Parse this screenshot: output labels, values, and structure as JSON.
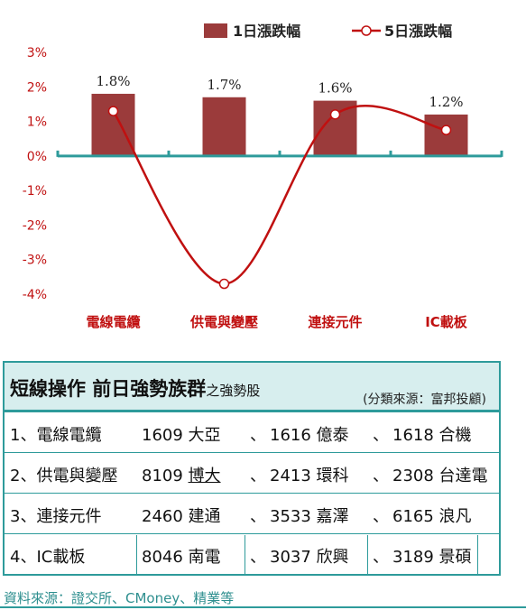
{
  "chart_data": {
    "type": "bar+line",
    "categories": [
      "電線電纜",
      "供電與變壓",
      "連接元件",
      "IC載板"
    ],
    "series": [
      {
        "name": "1日漲跌幅",
        "type": "bar",
        "values": [
          1.8,
          1.7,
          1.6,
          1.2
        ],
        "labels": [
          "1.8%",
          "1.7%",
          "1.6%",
          "1.2%"
        ]
      },
      {
        "name": "5日漲跌幅",
        "type": "line",
        "values": [
          1.3,
          -3.7,
          1.2,
          0.75
        ]
      }
    ],
    "ylim": [
      -4,
      3
    ],
    "yticks": [
      "3%",
      "2%",
      "1%",
      "0%",
      "-1%",
      "-2%",
      "-3%",
      "-4%"
    ],
    "grid": false,
    "legend": "top",
    "colors": {
      "bar": "#9b3b3b",
      "line": "#c01010",
      "ticks": "#c01010",
      "categories": "#c01010"
    }
  },
  "table": {
    "title": "短線操作 前日強勢族群",
    "title_suffix": "之強勢股",
    "source": "(分類來源：富邦投顧)",
    "separator": "、",
    "rows": [
      {
        "category": "1、電線電纜",
        "s1_code": "1609",
        "s1_name": "大亞",
        "s2_code": "1616",
        "s2_name": "億泰",
        "s3_code": "1618",
        "s3_name": "合機"
      },
      {
        "category": "2、供電與變壓",
        "s1_code": "8109",
        "s1_name": "博大",
        "s2_code": "2413",
        "s2_name": "環科",
        "s3_code": "2308",
        "s3_name": "台達電"
      },
      {
        "category": "3、連接元件",
        "s1_code": "2460",
        "s1_name": "建通",
        "s2_code": "3533",
        "s2_name": "嘉澤",
        "s3_code": "6165",
        "s3_name": "浪凡"
      },
      {
        "category": "4、IC載板",
        "s1_code": "8046",
        "s1_name": "南電",
        "s2_code": "3037",
        "s2_name": "欣興",
        "s3_code": "3189",
        "s3_name": "景碩"
      }
    ]
  },
  "footnote": "資料來源：證交所、CMoney、精業等"
}
